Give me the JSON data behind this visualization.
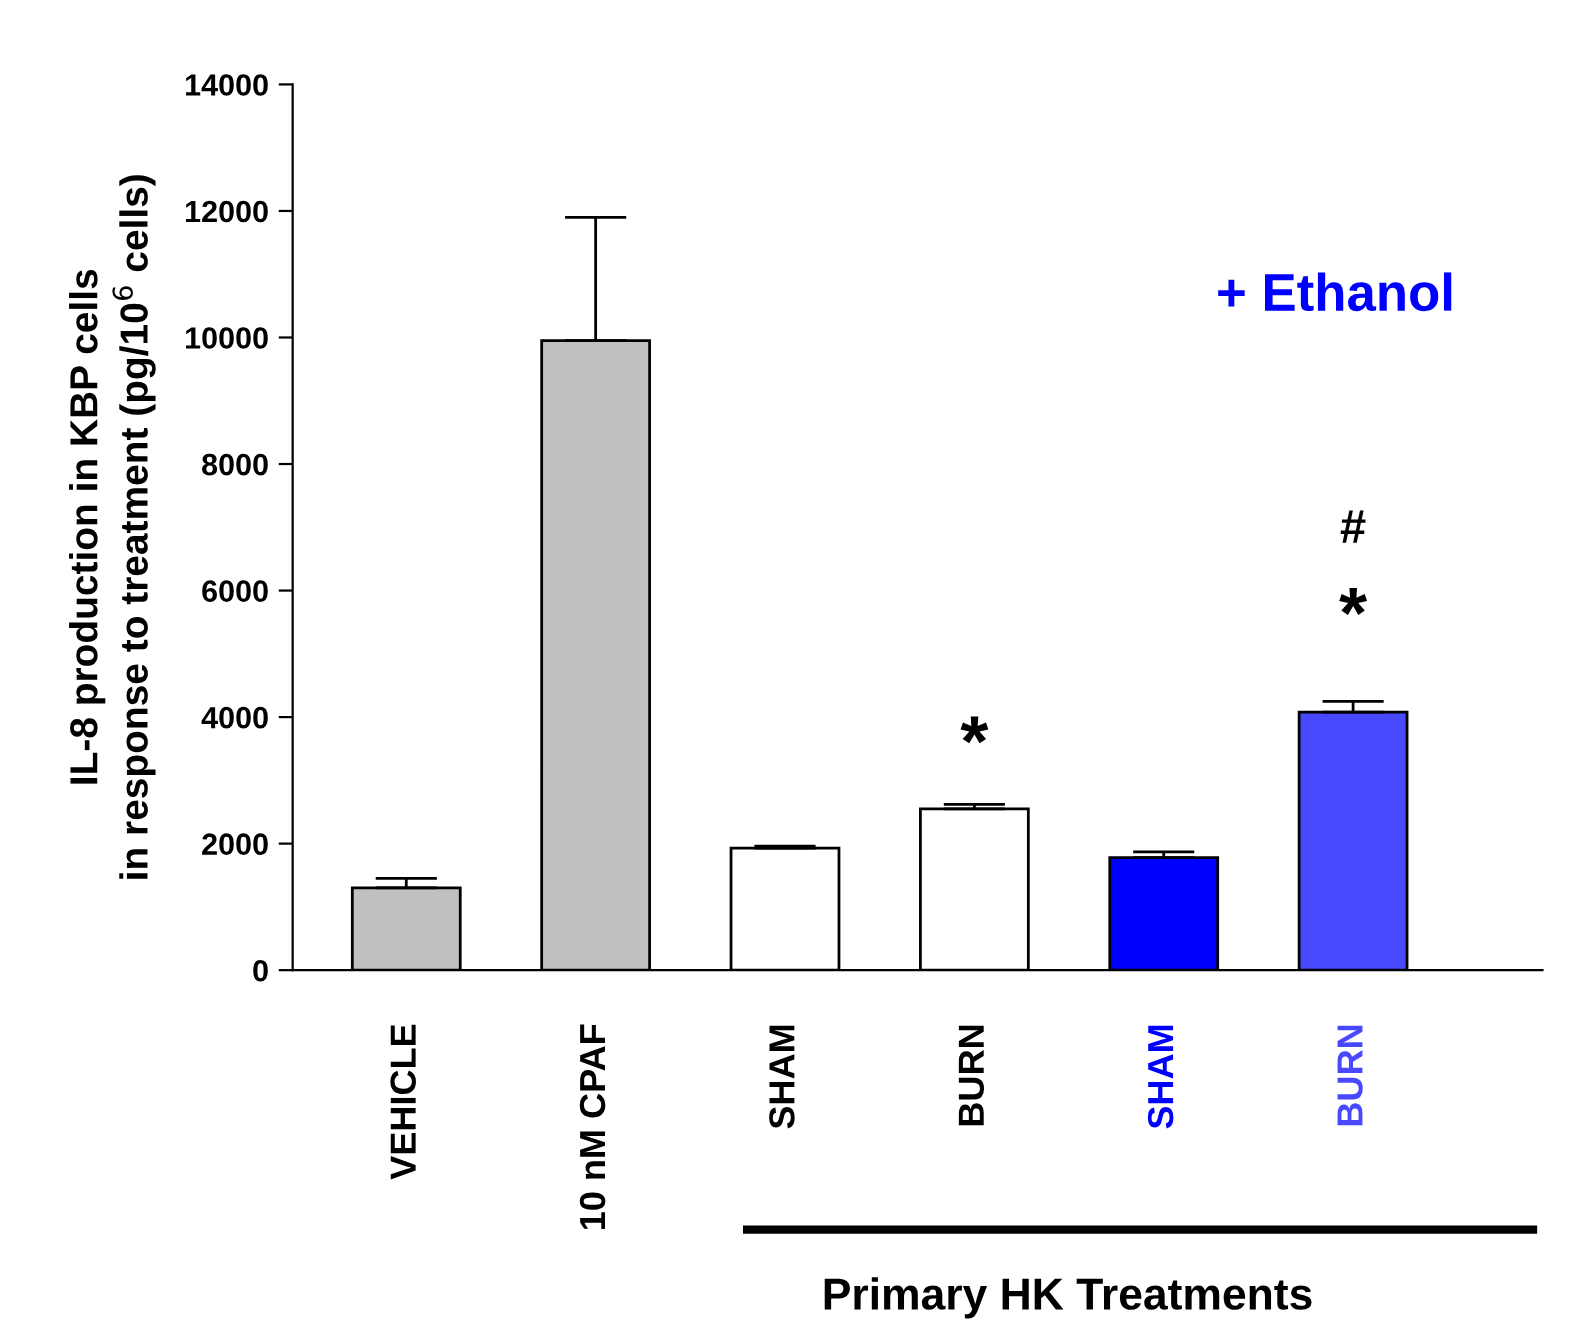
{
  "chart_data": {
    "type": "bar",
    "ylabel": "IL-8 production in KBP cells\nin response to treatment (pg/10$^{6}$ cells)",
    "categories": [
      "VEHICLE",
      "10 nM CPAF",
      "SHAM",
      "BURN",
      "SHAM",
      "BURN"
    ],
    "values": [
      1300,
      9950,
      1930,
      2550,
      1780,
      4080
    ],
    "errors": [
      150,
      1950,
      30,
      70,
      90,
      170
    ],
    "colors": [
      "#c0c0c0",
      "#c0c0c0",
      "#ffffff",
      "#ffffff",
      "#0000ff",
      "#4848ff"
    ],
    "ylim": [
      0,
      14000
    ],
    "yticks": [
      0,
      2000,
      4000,
      6000,
      8000,
      10000,
      12000,
      14000
    ],
    "annotations": [
      "+ Ethanol",
      "*",
      "#",
      "*",
      "Primary HK Treatments"
    ],
    "grid": false,
    "legend": false
  }
}
